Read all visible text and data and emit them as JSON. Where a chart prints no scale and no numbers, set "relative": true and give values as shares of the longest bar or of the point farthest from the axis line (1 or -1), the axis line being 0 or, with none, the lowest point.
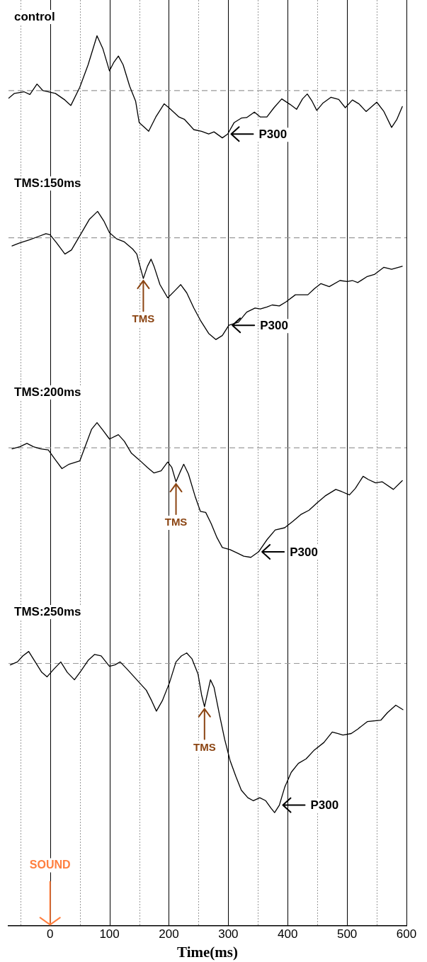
{
  "chart_data": [
    {
      "type": "line",
      "title": "control",
      "relative": true,
      "grid": "x",
      "tick_labels": false,
      "xlim": [
        -70,
        600
      ],
      "xticks": [
        {
          "value": -50,
          "label": null
        },
        0,
        {
          "value": 50,
          "label": null
        },
        100,
        {
          "value": 150,
          "label": null
        },
        200,
        {
          "value": 250,
          "label": null
        },
        300,
        {
          "value": 350,
          "label": null
        },
        400,
        {
          "value": 450,
          "label": null
        },
        500,
        {
          "value": 550,
          "label": null
        },
        600
      ],
      "x": [
        -70,
        -60,
        -44,
        -34,
        -22,
        -12,
        9,
        25,
        35,
        50,
        64,
        79,
        89,
        100,
        107,
        115,
        123,
        134,
        144,
        150,
        166,
        178,
        192,
        201,
        217,
        226,
        242,
        255,
        267,
        276,
        290,
        299,
        310,
        322,
        331,
        344,
        354,
        365,
        377,
        390,
        404,
        415,
        425,
        433,
        441,
        449,
        459,
        473,
        486,
        497,
        509,
        520,
        532,
        550,
        562,
        575,
        584,
        593
      ],
      "series": [
        {
          "color": "#000000",
          "values": [
            -0.14,
            -0.05,
            -0.02,
            -0.07,
            0.12,
            0.0,
            -0.05,
            -0.17,
            -0.27,
            0.06,
            0.47,
            1.0,
            0.76,
            0.36,
            0.51,
            0.63,
            0.47,
            0.08,
            -0.19,
            -0.58,
            -0.74,
            -0.48,
            -0.24,
            -0.32,
            -0.48,
            -0.52,
            -0.71,
            -0.74,
            -0.79,
            -0.75,
            -0.86,
            -0.79,
            -0.58,
            -0.5,
            -0.49,
            -0.39,
            -0.48,
            -0.48,
            -0.31,
            -0.15,
            -0.25,
            -0.34,
            -0.15,
            -0.06,
            -0.19,
            -0.36,
            -0.23,
            -0.12,
            -0.16,
            -0.31,
            -0.17,
            -0.24,
            -0.38,
            -0.21,
            -0.38,
            -0.67,
            -0.52,
            -0.29
          ]
        }
      ],
      "ref_lines": [
        {
          "axis": "y",
          "value": 0,
          "color": "#999999",
          "line_style": "dashed"
        }
      ],
      "annotations": [
        {
          "text": "P300",
          "x": 299,
          "y": -0.79
        }
      ]
    },
    {
      "type": "line",
      "title": "TMS:150ms",
      "relative": true,
      "grid": "x",
      "tick_labels": false,
      "xlim": [
        -70,
        600
      ],
      "xticks": [
        {
          "value": -50,
          "label": null
        },
        0,
        {
          "value": 50,
          "label": null
        },
        100,
        {
          "value": 150,
          "label": null
        },
        200,
        {
          "value": 250,
          "label": null
        },
        300,
        {
          "value": 350,
          "label": null
        },
        400,
        {
          "value": 450,
          "label": null
        },
        500,
        {
          "value": 550,
          "label": null
        },
        600
      ],
      "x": [
        -64,
        -51,
        -35,
        -21,
        -7,
        0,
        11,
        25,
        36,
        50,
        66,
        80,
        91,
        100,
        112,
        125,
        139,
        146,
        150,
        157,
        164,
        170,
        175,
        185,
        198,
        210,
        220,
        230,
        242,
        253,
        267,
        279,
        290,
        301,
        317,
        331,
        345,
        354,
        365,
        374,
        386,
        397,
        413,
        434,
        445,
        456,
        470,
        488,
        500,
        509,
        518,
        534,
        546,
        562,
        575,
        593
      ],
      "series": [
        {
          "color": "#000000",
          "values": [
            -0.08,
            -0.05,
            -0.02,
            0.01,
            0.04,
            0.03,
            -0.05,
            -0.16,
            -0.12,
            0.02,
            0.18,
            0.26,
            0.16,
            0.05,
            -0.01,
            -0.04,
            -0.11,
            -0.16,
            -0.25,
            -0.4,
            -0.28,
            -0.21,
            -0.28,
            -0.46,
            -0.59,
            -0.52,
            -0.46,
            -0.54,
            -0.69,
            -0.81,
            -0.94,
            -1.0,
            -0.96,
            -0.86,
            -0.83,
            -0.73,
            -0.69,
            -0.7,
            -0.68,
            -0.66,
            -0.67,
            -0.63,
            -0.56,
            -0.56,
            -0.5,
            -0.45,
            -0.48,
            -0.42,
            -0.43,
            -0.42,
            -0.44,
            -0.38,
            -0.36,
            -0.29,
            -0.31,
            -0.28
          ]
        }
      ],
      "ref_lines": [
        {
          "axis": "y",
          "value": 0,
          "color": "#999999",
          "line_style": "dashed"
        }
      ],
      "annotations": [
        {
          "text": "P300",
          "x": 301,
          "y": -0.86
        },
        {
          "text": "TMS",
          "x": 157,
          "y": -0.4
        }
      ]
    },
    {
      "type": "line",
      "title": "TMS:200ms",
      "relative": true,
      "grid": "x",
      "tick_labels": false,
      "xlim": [
        -70,
        600
      ],
      "xticks": [
        {
          "value": -50,
          "label": null
        },
        0,
        {
          "value": 50,
          "label": null
        },
        100,
        {
          "value": 150,
          "label": null
        },
        200,
        {
          "value": 250,
          "label": null
        },
        300,
        {
          "value": 350,
          "label": null
        },
        400,
        {
          "value": 450,
          "label": null
        },
        500,
        {
          "value": 550,
          "label": null
        },
        600
      ],
      "x": [
        -64,
        -51,
        -39,
        -28,
        -16,
        -3,
        9,
        20,
        32,
        50,
        61,
        70,
        79,
        89,
        100,
        115,
        125,
        137,
        150,
        164,
        175,
        187,
        198,
        205,
        212,
        219,
        225,
        233,
        244,
        253,
        262,
        271,
        281,
        290,
        303,
        315,
        326,
        338,
        351,
        365,
        379,
        395,
        409,
        422,
        436,
        450,
        463,
        481,
        491,
        504,
        514,
        527,
        536,
        548,
        559,
        578,
        593
      ],
      "series": [
        {
          "color": "#000000",
          "values": [
            -0.01,
            0.01,
            0.04,
            0.01,
            -0.01,
            -0.02,
            -0.11,
            -0.19,
            -0.15,
            -0.12,
            0.04,
            0.17,
            0.23,
            0.16,
            0.08,
            0.12,
            0.06,
            -0.05,
            -0.11,
            -0.18,
            -0.23,
            -0.21,
            -0.13,
            -0.18,
            -0.31,
            -0.22,
            -0.15,
            -0.24,
            -0.44,
            -0.58,
            -0.59,
            -0.69,
            -0.82,
            -0.91,
            -0.93,
            -0.96,
            -0.99,
            -1.0,
            -0.95,
            -0.84,
            -0.75,
            -0.73,
            -0.67,
            -0.61,
            -0.57,
            -0.5,
            -0.44,
            -0.38,
            -0.4,
            -0.43,
            -0.37,
            -0.26,
            -0.29,
            -0.32,
            -0.31,
            -0.38,
            -0.3
          ]
        }
      ],
      "ref_lines": [
        {
          "axis": "y",
          "value": 0,
          "color": "#999999",
          "line_style": "dashed"
        }
      ],
      "annotations": [
        {
          "text": "P300",
          "x": 351,
          "y": -0.95
        },
        {
          "text": "TMS",
          "x": 212,
          "y": -0.31
        }
      ]
    },
    {
      "type": "line",
      "title": "TMS:250ms",
      "relative": true,
      "grid": "x",
      "tick_labels": "x",
      "xlabel": "Time(ms)",
      "xlim": [
        -70,
        600
      ],
      "xticks": [
        {
          "value": -50,
          "label": null
        },
        0,
        {
          "value": 50,
          "label": null
        },
        100,
        {
          "value": 150,
          "label": null
        },
        200,
        {
          "value": 250,
          "label": null
        },
        300,
        {
          "value": 350,
          "label": null
        },
        400,
        {
          "value": 450,
          "label": null
        },
        500,
        {
          "value": 550,
          "label": null
        },
        600
      ],
      "x": [
        -67,
        -55,
        -46,
        -36,
        -25,
        -14,
        -5,
        6,
        18,
        29,
        41,
        52,
        64,
        75,
        86,
        100,
        109,
        118,
        130,
        146,
        162,
        171,
        179,
        189,
        201,
        212,
        221,
        230,
        239,
        249,
        255,
        260,
        265,
        270,
        276,
        285,
        294,
        303,
        313,
        322,
        333,
        342,
        353,
        363,
        372,
        378,
        386,
        395,
        406,
        418,
        431,
        445,
        461,
        475,
        484,
        493,
        507,
        518,
        534,
        557,
        568,
        582,
        594
      ],
      "series": [
        {
          "color": "#000000",
          "values": [
            -0.01,
            0.01,
            0.05,
            0.08,
            0.01,
            -0.06,
            -0.09,
            -0.04,
            0.01,
            -0.06,
            -0.11,
            -0.05,
            0.02,
            0.06,
            0.05,
            -0.02,
            -0.01,
            0.01,
            -0.04,
            -0.11,
            -0.18,
            -0.25,
            -0.32,
            -0.25,
            -0.13,
            0.01,
            0.05,
            0.07,
            0.03,
            -0.07,
            -0.21,
            -0.29,
            -0.2,
            -0.11,
            -0.16,
            -0.34,
            -0.51,
            -0.65,
            -0.76,
            -0.85,
            -0.9,
            -0.92,
            -0.9,
            -0.92,
            -0.97,
            -1.0,
            -0.95,
            -0.83,
            -0.73,
            -0.67,
            -0.64,
            -0.58,
            -0.53,
            -0.46,
            -0.47,
            -0.48,
            -0.47,
            -0.44,
            -0.39,
            -0.38,
            -0.33,
            -0.28,
            -0.31
          ]
        }
      ],
      "ref_lines": [
        {
          "axis": "y",
          "value": 0,
          "color": "#999999",
          "line_style": "dashed"
        }
      ],
      "annotations": [
        {
          "text": "P300",
          "x": 386,
          "y": -0.95
        },
        {
          "text": "TMS",
          "x": 260,
          "y": -0.29
        },
        "SOUND"
      ]
    }
  ]
}
